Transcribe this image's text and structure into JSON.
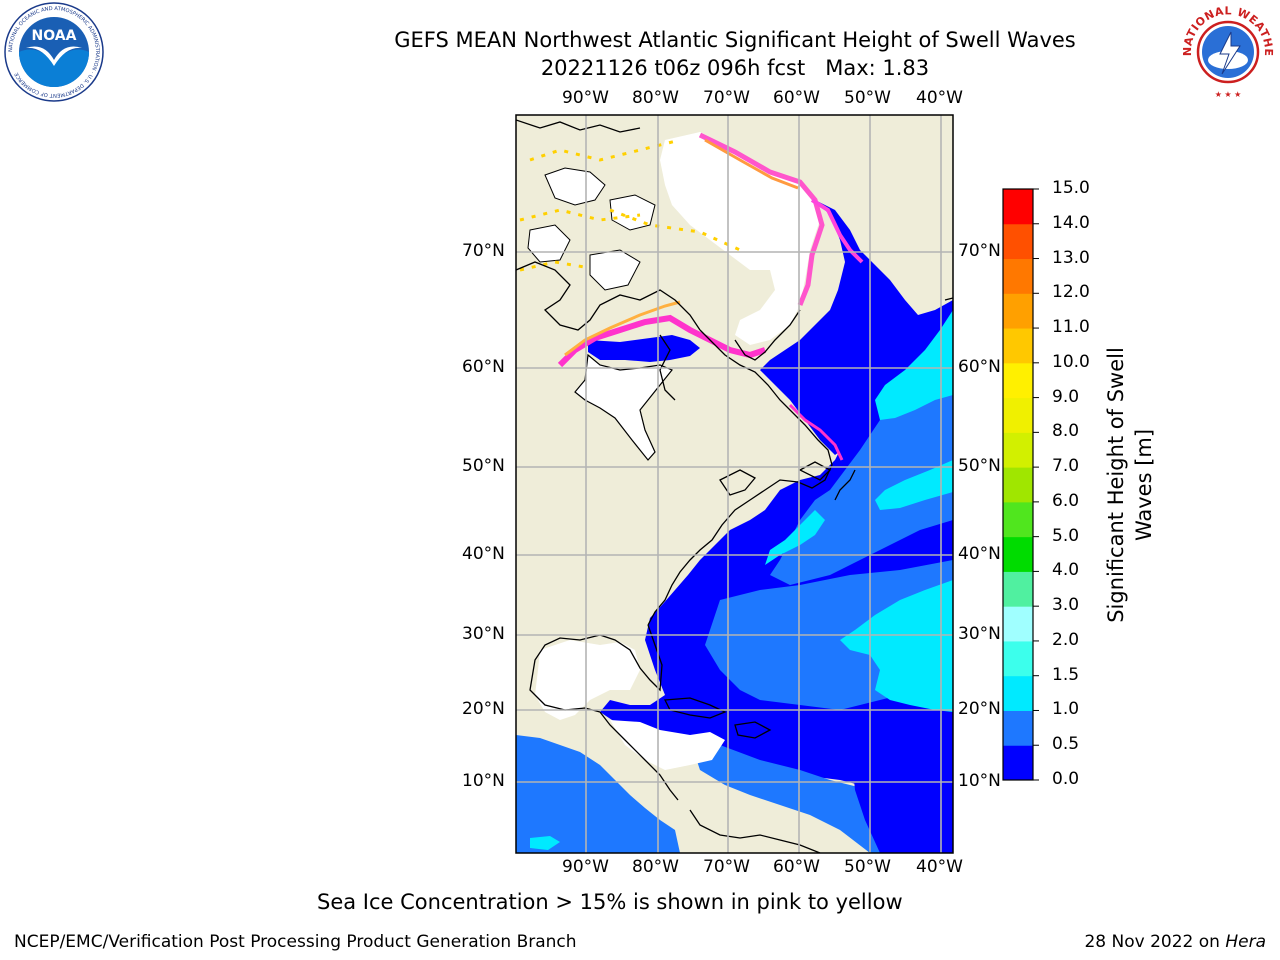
{
  "header": {
    "title_line1": "GEFS MEAN Northwest Atlantic Significant Height of Swell Waves",
    "title_line2": "20221126 t06z 096h fcst   Max: 1.83"
  },
  "logos": {
    "left": "NOAA",
    "left_ring_text": "NATIONAL OCEANIC AND ATMOSPHERIC ADMINISTRATION · U.S. DEPARTMENT OF COMMERCE",
    "right_ring_text": "NATIONAL WEATHER SERVICE"
  },
  "map": {
    "top_longitude_labels": [
      "90°W",
      "80°W",
      "70°W",
      "60°W",
      "50°W",
      "40°W"
    ],
    "bottom_longitude_labels": [
      "90°W",
      "80°W",
      "70°W",
      "60°W",
      "50°W",
      "40°W"
    ],
    "left_latitude_labels": [
      "70°N",
      "60°N",
      "50°N",
      "40°N",
      "30°N",
      "20°N",
      "10°N"
    ],
    "right_latitude_labels": [
      "70°N",
      "60°N",
      "50°N",
      "40°N",
      "30°N",
      "20°N",
      "10°N"
    ],
    "colors": {
      "land": "#efedd9",
      "ice_white": "#ffffff",
      "grid": "#b4b4b4"
    }
  },
  "colorbar": {
    "title_line1": "Significant Height of Swell",
    "title_line2": "Waves [m]",
    "tick_labels": [
      "0.0",
      "0.5",
      "1.0",
      "1.5",
      "2.0",
      "3.0",
      "4.0",
      "5.0",
      "6.0",
      "7.0",
      "8.0",
      "9.0",
      "10.0",
      "11.0",
      "12.0",
      "13.0",
      "14.0",
      "15.0"
    ],
    "colors": [
      "#0000ff",
      "#1e78ff",
      "#00eaff",
      "#3cffec",
      "#a0ffff",
      "#50f0a0",
      "#00dc00",
      "#50e61e",
      "#a0e600",
      "#d2f000",
      "#f0f000",
      "#fff000",
      "#ffc800",
      "#ffa000",
      "#ff7800",
      "#ff5000",
      "#ff0000"
    ]
  },
  "footnote": "Sea Ice Concentration > 15% is shown in pink to yellow",
  "footer": {
    "left": "NCEP/EMC/Verification Post Processing Product Generation Branch",
    "right_prefix": "28 Nov 2022 on ",
    "right_machine": "Hera"
  }
}
